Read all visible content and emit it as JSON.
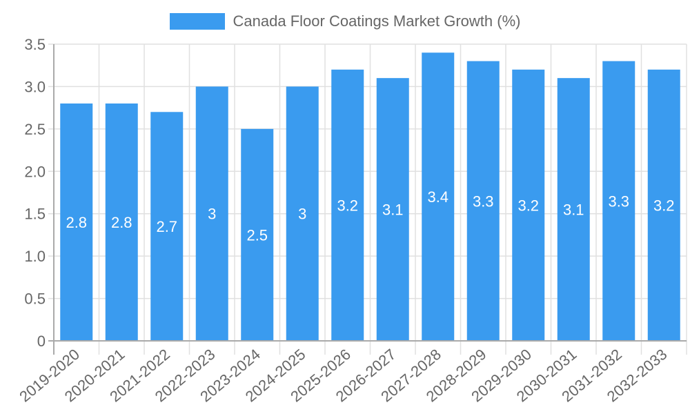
{
  "chart_data": {
    "type": "bar",
    "title": "",
    "legend": [
      {
        "label": "Canada Floor Coatings Market Growth (%)",
        "color": "#3a9bef"
      }
    ],
    "legend_position": "top",
    "categories": [
      "2019-2020",
      "2020-2021",
      "2021-2022",
      "2022-2023",
      "2023-2024",
      "2024-2025",
      "2025-2026",
      "2026-2027",
      "2027-2028",
      "2028-2029",
      "2029-2030",
      "2030-2031",
      "2031-2032",
      "2032-2033"
    ],
    "series": [
      {
        "name": "Canada Floor Coatings Market Growth (%)",
        "values": [
          2.8,
          2.8,
          2.7,
          3,
          2.5,
          3,
          3.2,
          3.1,
          3.4,
          3.3,
          3.2,
          3.1,
          3.3,
          3.2
        ],
        "labels": [
          "2.8",
          "2.8",
          "2.7",
          "3",
          "2.5",
          "3",
          "3.2",
          "3.1",
          "3.4",
          "3.3",
          "3.2",
          "3.1",
          "3.3",
          "3.2"
        ]
      }
    ],
    "xlabel": "",
    "ylabel": "",
    "ylim": [
      0,
      3.5
    ],
    "yticks": [
      "0",
      "0.5",
      "1.0",
      "1.5",
      "2.0",
      "2.5",
      "3.0",
      "3.5"
    ],
    "grid": true,
    "colors": {
      "bar": "#3a9bef",
      "grid": "#e0e0e0",
      "axis": "#aaaaaa",
      "text": "#666666",
      "bar_label": "#ffffff"
    }
  }
}
